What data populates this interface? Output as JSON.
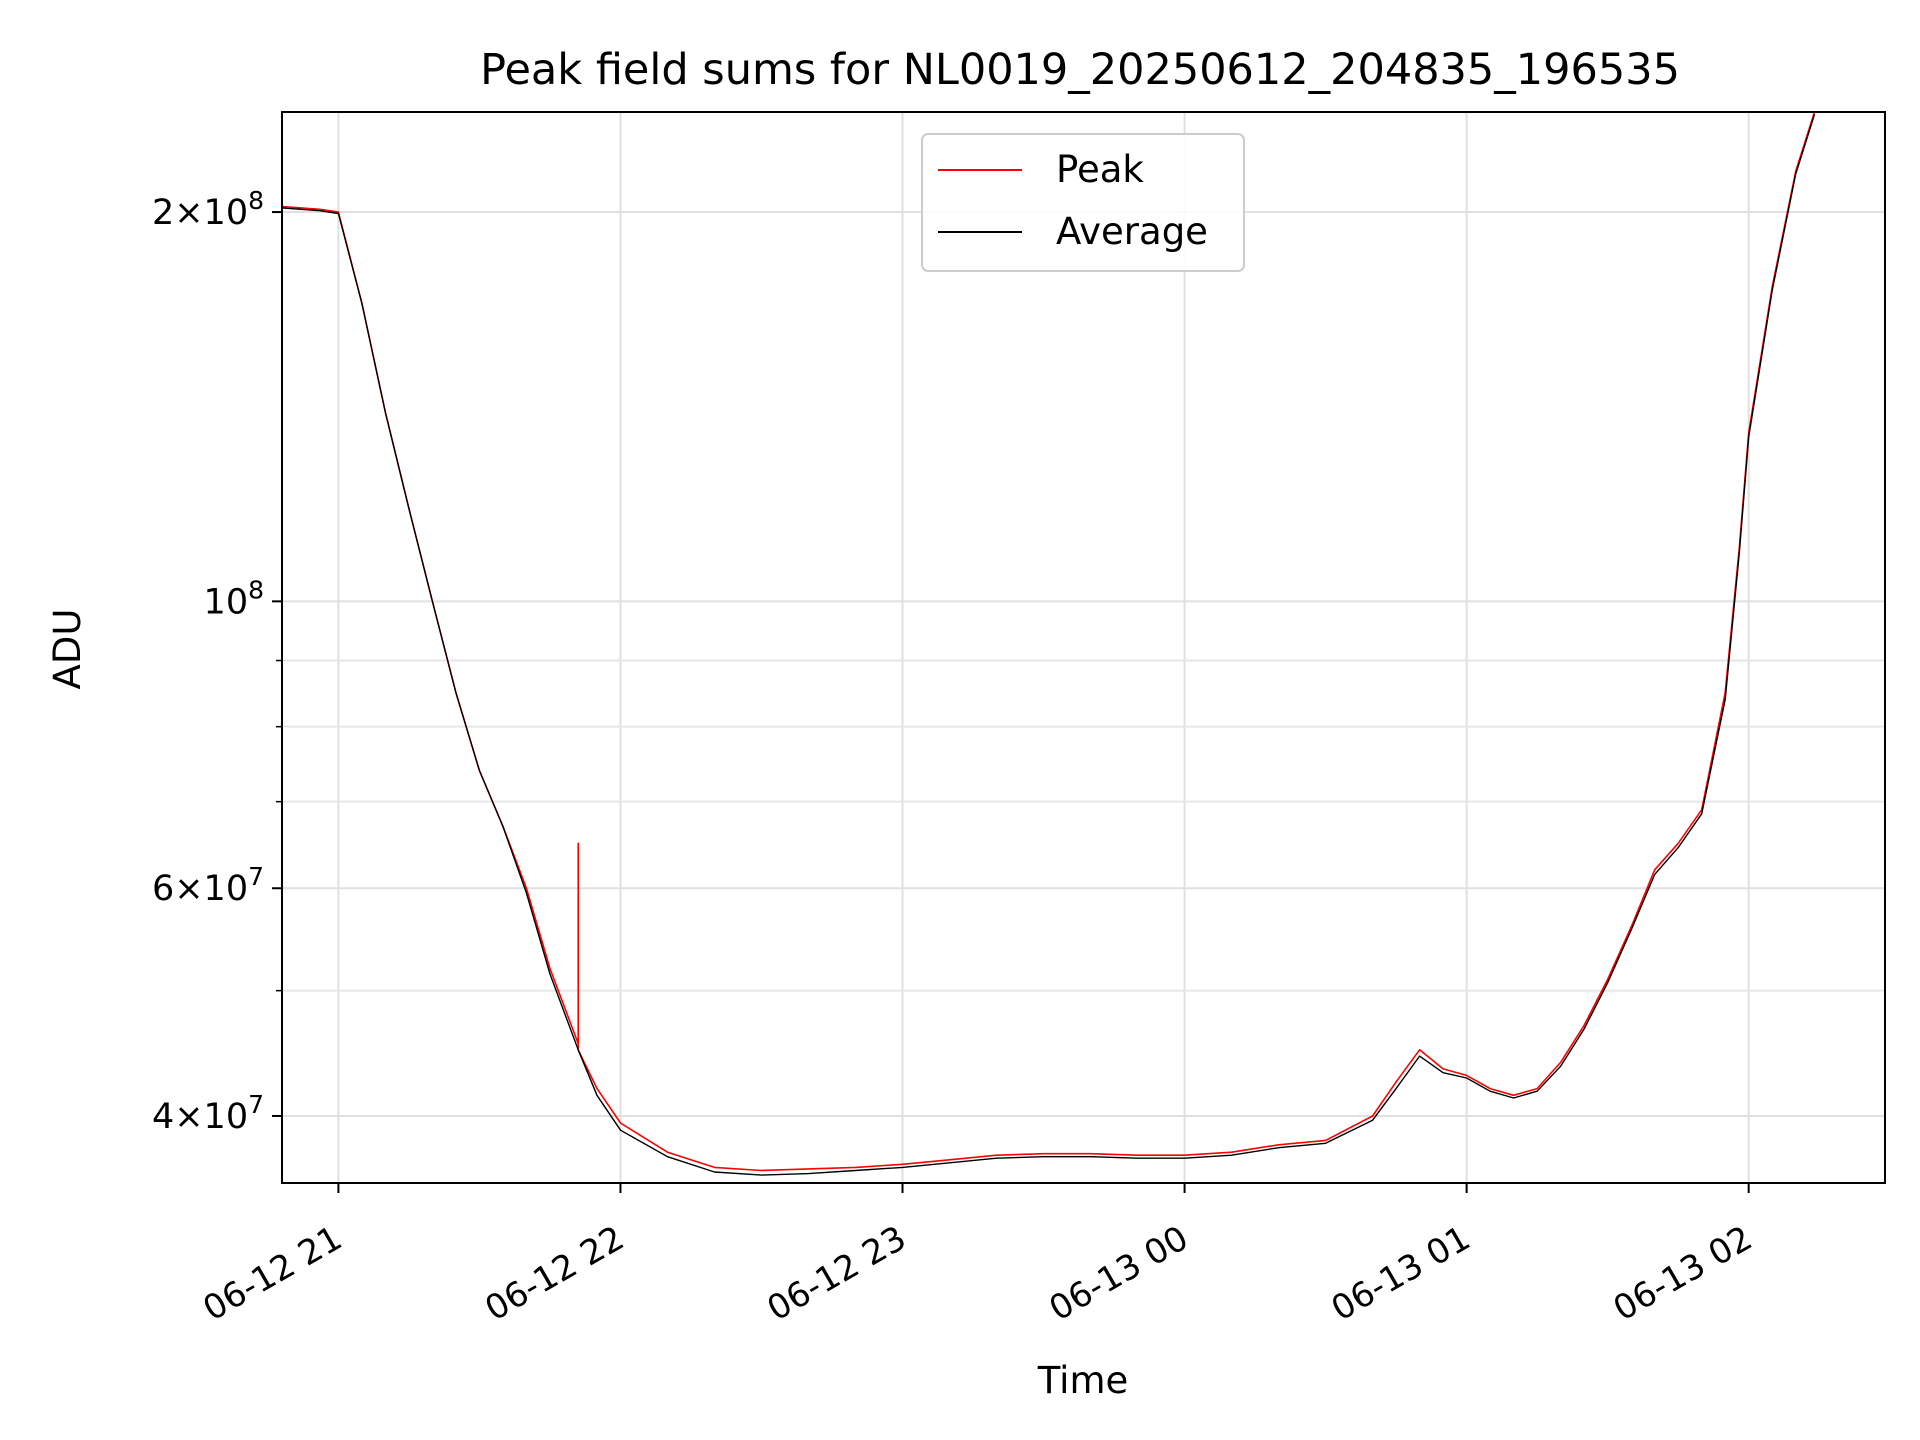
{
  "chart_data": {
    "type": "line",
    "title": "Peak field sums for NL0019_20250612_204835_196535",
    "xlabel": "Time",
    "ylabel": "ADU",
    "yscale": "log",
    "grid": true,
    "legend_position": "upper center",
    "xlim": [
      "2025-06-12 20:48",
      "2025-06-13 02:29"
    ],
    "ylim": [
      35500000,
      239000000
    ],
    "x_ticks": [
      {
        "value": "2025-06-12 21:00",
        "label": "06-12 21"
      },
      {
        "value": "2025-06-12 22:00",
        "label": "06-12 22"
      },
      {
        "value": "2025-06-12 23:00",
        "label": "06-12 23"
      },
      {
        "value": "2025-06-13 00:00",
        "label": "06-13 00"
      },
      {
        "value": "2025-06-13 01:00",
        "label": "06-13 01"
      },
      {
        "value": "2025-06-13 02:00",
        "label": "06-13 02"
      }
    ],
    "y_major_ticks": [
      {
        "value": 40000000,
        "mantissa": "4",
        "base": "10",
        "exp": "7"
      },
      {
        "value": 60000000,
        "mantissa": "6",
        "base": "10",
        "exp": "7"
      },
      {
        "value": 100000000,
        "mantissa": "",
        "base": "10",
        "exp": "8"
      },
      {
        "value": 200000000,
        "mantissa": "2",
        "base": "10",
        "exp": "8"
      }
    ],
    "y_minor_ticks": [
      50000000,
      70000000,
      80000000,
      90000000
    ],
    "series": [
      {
        "name": "Peak",
        "color": "#ff0000",
        "x": [
          "2025-06-12 20:48",
          "2025-06-12 20:56",
          "2025-06-12 21:00",
          "2025-06-12 21:05",
          "2025-06-12 21:10",
          "2025-06-12 21:15",
          "2025-06-12 21:20",
          "2025-06-12 21:25",
          "2025-06-12 21:30",
          "2025-06-12 21:35",
          "2025-06-12 21:40",
          "2025-06-12 21:45",
          "2025-06-12 21:51",
          "2025-06-12 21:51",
          "2025-06-12 21:51",
          "2025-06-12 21:55",
          "2025-06-12 22:00",
          "2025-06-12 22:10",
          "2025-06-12 22:20",
          "2025-06-12 22:30",
          "2025-06-12 22:40",
          "2025-06-12 22:50",
          "2025-06-12 23:00",
          "2025-06-12 23:10",
          "2025-06-12 23:20",
          "2025-06-12 23:30",
          "2025-06-12 23:40",
          "2025-06-12 23:50",
          "2025-06-13 00:00",
          "2025-06-13 00:10",
          "2025-06-13 00:20",
          "2025-06-13 00:30",
          "2025-06-13 00:40",
          "2025-06-13 00:45",
          "2025-06-13 00:50",
          "2025-06-13 00:55",
          "2025-06-13 01:00",
          "2025-06-13 01:05",
          "2025-06-13 01:10",
          "2025-06-13 01:15",
          "2025-06-13 01:20",
          "2025-06-13 01:25",
          "2025-06-13 01:30",
          "2025-06-13 01:35",
          "2025-06-13 01:40",
          "2025-06-13 01:45",
          "2025-06-13 01:50",
          "2025-06-13 01:55",
          "2025-06-13 01:58",
          "2025-06-13 02:00",
          "2025-06-13 02:05",
          "2025-06-13 02:10",
          "2025-06-13 02:14"
        ],
        "y": [
          202000000,
          201000000,
          200000000,
          170000000,
          140000000,
          118000000,
          100000000,
          85000000,
          74000000,
          67000000,
          60000000,
          52000000,
          45500000,
          65000000,
          45000000,
          42000000,
          39500000,
          37500000,
          36500000,
          36300000,
          36400000,
          36500000,
          36700000,
          37000000,
          37300000,
          37400000,
          37400000,
          37300000,
          37300000,
          37500000,
          38000000,
          38300000,
          40000000,
          42500000,
          45000000,
          43500000,
          43000000,
          42000000,
          41500000,
          42000000,
          44000000,
          47000000,
          51000000,
          56000000,
          62000000,
          65000000,
          69000000,
          85000000,
          110000000,
          135000000,
          175000000,
          215000000,
          239000000
        ]
      },
      {
        "name": "Average",
        "color": "#000000",
        "x": [
          "2025-06-12 20:48",
          "2025-06-12 20:56",
          "2025-06-12 21:00",
          "2025-06-12 21:05",
          "2025-06-12 21:10",
          "2025-06-12 21:15",
          "2025-06-12 21:20",
          "2025-06-12 21:25",
          "2025-06-12 21:30",
          "2025-06-12 21:35",
          "2025-06-12 21:40",
          "2025-06-12 21:45",
          "2025-06-12 21:51",
          "2025-06-12 21:55",
          "2025-06-12 22:00",
          "2025-06-12 22:10",
          "2025-06-12 22:20",
          "2025-06-12 22:30",
          "2025-06-12 22:40",
          "2025-06-12 22:50",
          "2025-06-12 23:00",
          "2025-06-12 23:10",
          "2025-06-12 23:20",
          "2025-06-12 23:30",
          "2025-06-12 23:40",
          "2025-06-12 23:50",
          "2025-06-13 00:00",
          "2025-06-13 00:10",
          "2025-06-13 00:20",
          "2025-06-13 00:30",
          "2025-06-13 00:40",
          "2025-06-13 00:45",
          "2025-06-13 00:50",
          "2025-06-13 00:55",
          "2025-06-13 01:00",
          "2025-06-13 01:05",
          "2025-06-13 01:10",
          "2025-06-13 01:15",
          "2025-06-13 01:20",
          "2025-06-13 01:25",
          "2025-06-13 01:30",
          "2025-06-13 01:35",
          "2025-06-13 01:40",
          "2025-06-13 01:45",
          "2025-06-13 01:50",
          "2025-06-13 01:55",
          "2025-06-13 01:58",
          "2025-06-13 02:00",
          "2025-06-13 02:05",
          "2025-06-13 02:10",
          "2025-06-13 02:14"
        ],
        "y": [
          201500000,
          200500000,
          199500000,
          170000000,
          140000000,
          118000000,
          100000000,
          85000000,
          74000000,
          67000000,
          59500000,
          51500000,
          45000000,
          41500000,
          39000000,
          37200000,
          36200000,
          36000000,
          36100000,
          36300000,
          36500000,
          36800000,
          37100000,
          37200000,
          37200000,
          37100000,
          37100000,
          37300000,
          37800000,
          38100000,
          39700000,
          42000000,
          44500000,
          43200000,
          42800000,
          41800000,
          41300000,
          41800000,
          43700000,
          46700000,
          50700000,
          55700000,
          61500000,
          64500000,
          68500000,
          84000000,
          109000000,
          134000000,
          174000000,
          214000000,
          238000000
        ]
      }
    ]
  }
}
